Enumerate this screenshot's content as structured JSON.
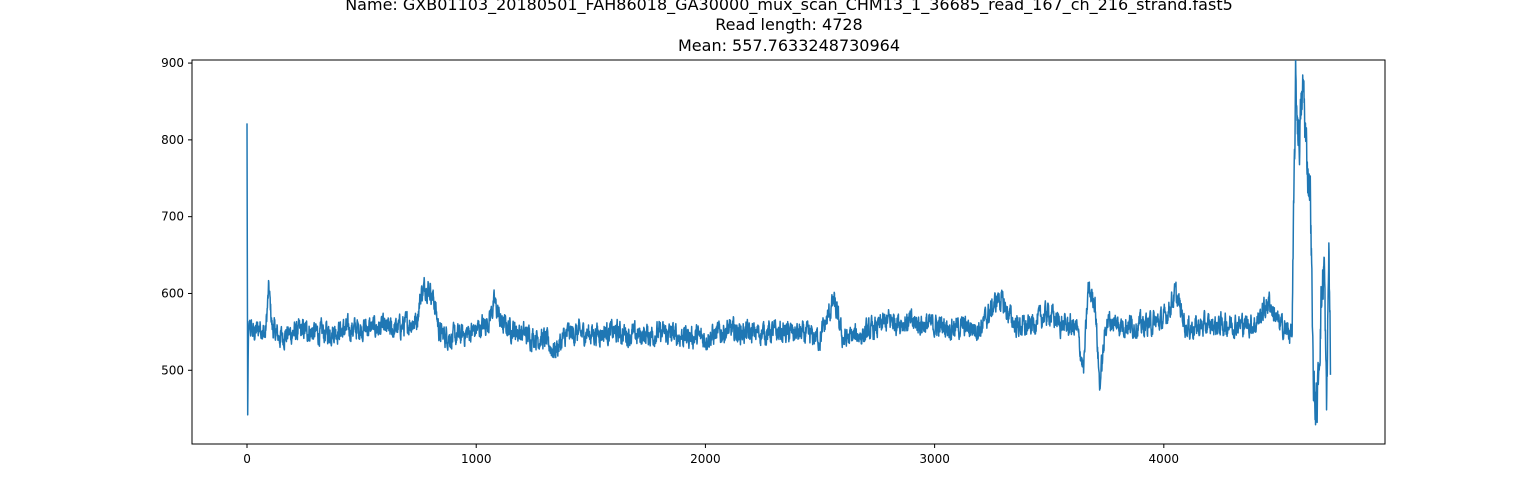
{
  "chart_data": {
    "type": "line",
    "title_lines": [
      "Name: GXB01103_20180501_FAH86018_GA30000_mux_scan_CHM13_1_36685_read_167_ch_216_strand.fast5",
      "Read length: 4728",
      "Mean: 557.7633248730964"
    ],
    "xlabel": "",
    "ylabel": "",
    "xlim": [
      -240,
      4965
    ],
    "ylim": [
      404,
      904
    ],
    "x_ticks": [
      0,
      1000,
      2000,
      3000,
      4000
    ],
    "y_ticks": [
      500,
      600,
      700,
      800,
      900
    ],
    "grid": false,
    "line_color": "#1f77b4",
    "series": [
      {
        "length": 4728,
        "mean": 557.7633248730964,
        "approx_points": [
          [
            0,
            818
          ],
          [
            3,
            430
          ],
          [
            6,
            540
          ],
          [
            12,
            556
          ],
          [
            30,
            548
          ],
          [
            60,
            557
          ],
          [
            80,
            545
          ],
          [
            95,
            606
          ],
          [
            110,
            555
          ],
          [
            140,
            543
          ],
          [
            180,
            547
          ],
          [
            250,
            552
          ],
          [
            320,
            548
          ],
          [
            400,
            552
          ],
          [
            480,
            554
          ],
          [
            560,
            556
          ],
          [
            640,
            553
          ],
          [
            700,
            560
          ],
          [
            740,
            565
          ],
          [
            760,
            600
          ],
          [
            780,
            610
          ],
          [
            800,
            605
          ],
          [
            820,
            585
          ],
          [
            840,
            548
          ],
          [
            900,
            542
          ],
          [
            960,
            548
          ],
          [
            1000,
            553
          ],
          [
            1050,
            562
          ],
          [
            1080,
            588
          ],
          [
            1110,
            560
          ],
          [
            1200,
            548
          ],
          [
            1300,
            540
          ],
          [
            1340,
            525
          ],
          [
            1400,
            548
          ],
          [
            1500,
            548
          ],
          [
            1600,
            550
          ],
          [
            1700,
            545
          ],
          [
            1800,
            548
          ],
          [
            1900,
            545
          ],
          [
            2000,
            542
          ],
          [
            2100,
            552
          ],
          [
            2200,
            548
          ],
          [
            2300,
            550
          ],
          [
            2400,
            548
          ],
          [
            2500,
            542
          ],
          [
            2560,
            590
          ],
          [
            2600,
            540
          ],
          [
            2700,
            548
          ],
          [
            2750,
            555
          ],
          [
            2800,
            565
          ],
          [
            2900,
            562
          ],
          [
            3000,
            558
          ],
          [
            3100,
            556
          ],
          [
            3200,
            555
          ],
          [
            3280,
            595
          ],
          [
            3350,
            560
          ],
          [
            3400,
            555
          ],
          [
            3450,
            565
          ],
          [
            3500,
            575
          ],
          [
            3550,
            560
          ],
          [
            3620,
            555
          ],
          [
            3650,
            500
          ],
          [
            3670,
            605
          ],
          [
            3700,
            590
          ],
          [
            3720,
            480
          ],
          [
            3750,
            565
          ],
          [
            3800,
            560
          ],
          [
            3900,
            558
          ],
          [
            4000,
            565
          ],
          [
            4050,
            600
          ],
          [
            4100,
            555
          ],
          [
            4200,
            558
          ],
          [
            4300,
            560
          ],
          [
            4400,
            560
          ],
          [
            4460,
            590
          ],
          [
            4500,
            560
          ],
          [
            4560,
            548
          ],
          [
            4575,
            870
          ],
          [
            4590,
            800
          ],
          [
            4610,
            870
          ],
          [
            4620,
            790
          ],
          [
            4640,
            730
          ],
          [
            4650,
            520
          ],
          [
            4660,
            450
          ],
          [
            4670,
            455
          ],
          [
            4685,
            580
          ],
          [
            4700,
            640
          ],
          [
            4710,
            440
          ],
          [
            4720,
            660
          ],
          [
            4728,
            490
          ]
        ]
      }
    ]
  }
}
